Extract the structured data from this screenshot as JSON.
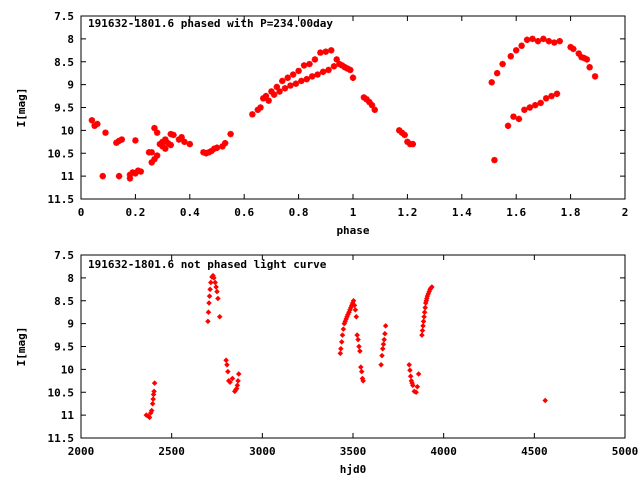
{
  "chart_data": [
    {
      "type": "scatter",
      "title": "191632-1801.6 phased with P=234.00day",
      "xlabel": "phase",
      "ylabel": "I[mag]",
      "xlim": [
        0,
        2
      ],
      "ylim": [
        11.5,
        7.5
      ],
      "y_inverted": true,
      "xticks": [
        "0",
        "0.2",
        "0.4",
        "0.6",
        "0.8",
        "1",
        "1.2",
        "1.4",
        "1.6",
        "1.8",
        "2"
      ],
      "xtick_values": [
        0,
        0.2,
        0.4,
        0.6,
        0.8,
        1.0,
        1.2,
        1.4,
        1.6,
        1.8,
        2.0
      ],
      "yticks": [
        "7.5",
        "8",
        "8.5",
        "9",
        "9.5",
        "10",
        "10.5",
        "11",
        "11.5"
      ],
      "ytick_values": [
        7.5,
        8,
        8.5,
        9,
        9.5,
        10,
        10.5,
        11,
        11.5
      ],
      "grid": false,
      "marker_color": "#ff0000",
      "marker": "star",
      "series": [
        {
          "points": [
            [
              0.04,
              9.78
            ],
            [
              0.05,
              9.9
            ],
            [
              0.06,
              9.86
            ],
            [
              0.08,
              11.0
            ],
            [
              0.09,
              10.05
            ],
            [
              0.13,
              10.27
            ],
            [
              0.14,
              10.23
            ],
            [
              0.14,
              11.0
            ],
            [
              0.15,
              10.2
            ],
            [
              0.18,
              11.05
            ],
            [
              0.18,
              10.97
            ],
            [
              0.19,
              10.92
            ],
            [
              0.2,
              10.22
            ],
            [
              0.2,
              10.94
            ],
            [
              0.21,
              10.88
            ],
            [
              0.22,
              10.9
            ],
            [
              0.25,
              10.48
            ],
            [
              0.26,
              10.7
            ],
            [
              0.26,
              10.48
            ],
            [
              0.27,
              10.63
            ],
            [
              0.27,
              9.95
            ],
            [
              0.28,
              10.55
            ],
            [
              0.28,
              10.05
            ],
            [
              0.29,
              10.3
            ],
            [
              0.3,
              10.35
            ],
            [
              0.3,
              10.25
            ],
            [
              0.31,
              10.4
            ],
            [
              0.31,
              10.2
            ],
            [
              0.32,
              10.28
            ],
            [
              0.33,
              10.32
            ],
            [
              0.33,
              10.08
            ],
            [
              0.34,
              10.1
            ],
            [
              0.36,
              10.2
            ],
            [
              0.37,
              10.15
            ],
            [
              0.38,
              10.25
            ],
            [
              0.4,
              10.3
            ],
            [
              0.45,
              10.48
            ],
            [
              0.46,
              10.5
            ],
            [
              0.47,
              10.48
            ],
            [
              0.48,
              10.45
            ],
            [
              0.49,
              10.4
            ],
            [
              0.5,
              10.38
            ],
            [
              0.52,
              10.35
            ],
            [
              0.53,
              10.28
            ],
            [
              0.55,
              10.08
            ],
            [
              0.63,
              9.65
            ],
            [
              0.65,
              9.55
            ],
            [
              0.66,
              9.5
            ],
            [
              0.67,
              9.3
            ],
            [
              0.68,
              9.25
            ],
            [
              0.69,
              9.35
            ],
            [
              0.7,
              9.15
            ],
            [
              0.71,
              9.22
            ],
            [
              0.72,
              9.05
            ],
            [
              0.73,
              9.15
            ],
            [
              0.74,
              8.92
            ],
            [
              0.75,
              9.08
            ],
            [
              0.76,
              8.85
            ],
            [
              0.77,
              9.02
            ],
            [
              0.78,
              8.78
            ],
            [
              0.79,
              8.98
            ],
            [
              0.8,
              8.7
            ],
            [
              0.81,
              8.92
            ],
            [
              0.82,
              8.58
            ],
            [
              0.83,
              8.88
            ],
            [
              0.84,
              8.55
            ],
            [
              0.85,
              8.82
            ],
            [
              0.86,
              8.45
            ],
            [
              0.87,
              8.78
            ],
            [
              0.88,
              8.3
            ],
            [
              0.89,
              8.72
            ],
            [
              0.9,
              8.28
            ],
            [
              0.91,
              8.68
            ],
            [
              0.92,
              8.25
            ],
            [
              0.93,
              8.6
            ],
            [
              0.94,
              8.45
            ],
            [
              0.95,
              8.55
            ],
            [
              0.96,
              8.58
            ],
            [
              0.97,
              8.62
            ],
            [
              0.98,
              8.65
            ],
            [
              0.99,
              8.68
            ],
            [
              1.0,
              8.85
            ],
            [
              1.04,
              9.28
            ],
            [
              1.05,
              9.32
            ],
            [
              1.06,
              9.38
            ],
            [
              1.07,
              9.45
            ],
            [
              1.08,
              9.55
            ],
            [
              1.17,
              10.0
            ],
            [
              1.18,
              10.05
            ],
            [
              1.19,
              10.1
            ],
            [
              1.2,
              10.25
            ],
            [
              1.21,
              10.3
            ],
            [
              1.22,
              10.3
            ],
            [
              1.51,
              8.95
            ],
            [
              1.52,
              10.65
            ],
            [
              1.53,
              8.75
            ],
            [
              1.55,
              8.55
            ],
            [
              1.57,
              9.9
            ],
            [
              1.58,
              8.38
            ],
            [
              1.59,
              9.7
            ],
            [
              1.6,
              8.25
            ],
            [
              1.61,
              9.75
            ],
            [
              1.62,
              8.15
            ],
            [
              1.63,
              9.55
            ],
            [
              1.64,
              8.02
            ],
            [
              1.65,
              9.5
            ],
            [
              1.66,
              8.0
            ],
            [
              1.67,
              9.45
            ],
            [
              1.68,
              8.05
            ],
            [
              1.69,
              9.4
            ],
            [
              1.7,
              8.0
            ],
            [
              1.71,
              9.3
            ],
            [
              1.72,
              8.05
            ],
            [
              1.73,
              9.25
            ],
            [
              1.74,
              8.08
            ],
            [
              1.75,
              9.2
            ],
            [
              1.76,
              8.05
            ],
            [
              1.8,
              8.18
            ],
            [
              1.81,
              8.22
            ],
            [
              1.83,
              8.32
            ],
            [
              1.84,
              8.4
            ],
            [
              1.85,
              8.42
            ],
            [
              1.86,
              8.45
            ],
            [
              1.87,
              8.62
            ],
            [
              1.89,
              8.82
            ]
          ]
        }
      ]
    },
    {
      "type": "scatter",
      "title": "191632-1801.6 not phased light curve",
      "xlabel": "hjd0",
      "ylabel": "I[mag]",
      "xlim": [
        2000,
        5000
      ],
      "ylim": [
        11.5,
        7.5
      ],
      "y_inverted": true,
      "xticks": [
        "2000",
        "2500",
        "3000",
        "3500",
        "4000",
        "4500",
        "5000"
      ],
      "xtick_values": [
        2000,
        2500,
        3000,
        3500,
        4000,
        4500,
        5000
      ],
      "yticks": [
        "7.5",
        "8",
        "8.5",
        "9",
        "9.5",
        "10",
        "10.5",
        "11",
        "11.5"
      ],
      "ytick_values": [
        7.5,
        8,
        8.5,
        9,
        9.5,
        10,
        10.5,
        11,
        11.5
      ],
      "grid": false,
      "marker_color": "#ff0000",
      "marker": "diamond",
      "series": [
        {
          "points": [
            [
              2360,
              11.0
            ],
            [
              2370,
              11.02
            ],
            [
              2378,
              11.05
            ],
            [
              2385,
              10.95
            ],
            [
              2390,
              10.9
            ],
            [
              2395,
              10.75
            ],
            [
              2398,
              10.65
            ],
            [
              2400,
              10.55
            ],
            [
              2403,
              10.48
            ],
            [
              2406,
              10.3
            ],
            [
              2700,
              8.95
            ],
            [
              2703,
              8.75
            ],
            [
              2706,
              8.55
            ],
            [
              2709,
              8.4
            ],
            [
              2712,
              8.25
            ],
            [
              2716,
              8.1
            ],
            [
              2722,
              7.98
            ],
            [
              2728,
              7.95
            ],
            [
              2733,
              8.0
            ],
            [
              2740,
              8.1
            ],
            [
              2745,
              8.2
            ],
            [
              2750,
              8.3
            ],
            [
              2755,
              8.45
            ],
            [
              2765,
              8.85
            ],
            [
              2800,
              9.8
            ],
            [
              2805,
              9.9
            ],
            [
              2810,
              10.05
            ],
            [
              2815,
              10.25
            ],
            [
              2822,
              10.28
            ],
            [
              2835,
              10.2
            ],
            [
              2848,
              10.48
            ],
            [
              2853,
              10.45
            ],
            [
              2858,
              10.42
            ],
            [
              2862,
              10.35
            ],
            [
              2866,
              10.25
            ],
            [
              2870,
              10.1
            ],
            [
              3430,
              9.65
            ],
            [
              3433,
              9.55
            ],
            [
              3438,
              9.4
            ],
            [
              3442,
              9.25
            ],
            [
              3447,
              9.12
            ],
            [
              3452,
              9.0
            ],
            [
              3457,
              8.95
            ],
            [
              3462,
              8.9
            ],
            [
              3467,
              8.85
            ],
            [
              3472,
              8.8
            ],
            [
              3478,
              8.75
            ],
            [
              3483,
              8.7
            ],
            [
              3488,
              8.65
            ],
            [
              3493,
              8.6
            ],
            [
              3498,
              8.55
            ],
            [
              3503,
              8.5
            ],
            [
              3508,
              8.6
            ],
            [
              3513,
              8.7
            ],
            [
              3518,
              8.85
            ],
            [
              3523,
              9.25
            ],
            [
              3528,
              9.35
            ],
            [
              3533,
              9.5
            ],
            [
              3538,
              9.6
            ],
            [
              3543,
              9.95
            ],
            [
              3548,
              10.05
            ],
            [
              3552,
              10.2
            ],
            [
              3556,
              10.25
            ],
            [
              3655,
              9.9
            ],
            [
              3660,
              9.7
            ],
            [
              3664,
              9.55
            ],
            [
              3668,
              9.45
            ],
            [
              3672,
              9.35
            ],
            [
              3676,
              9.22
            ],
            [
              3680,
              9.05
            ],
            [
              3810,
              9.9
            ],
            [
              3814,
              10.02
            ],
            [
              3818,
              10.15
            ],
            [
              3822,
              10.25
            ],
            [
              3826,
              10.3
            ],
            [
              3830,
              10.35
            ],
            [
              3838,
              10.48
            ],
            [
              3848,
              10.5
            ],
            [
              3855,
              10.38
            ],
            [
              3862,
              10.1
            ],
            [
              3880,
              9.25
            ],
            [
              3883,
              9.15
            ],
            [
              3886,
              9.05
            ],
            [
              3889,
              8.95
            ],
            [
              3892,
              8.85
            ],
            [
              3895,
              8.75
            ],
            [
              3898,
              8.65
            ],
            [
              3901,
              8.55
            ],
            [
              3904,
              8.5
            ],
            [
              3907,
              8.45
            ],
            [
              3910,
              8.4
            ],
            [
              3915,
              8.35
            ],
            [
              3920,
              8.3
            ],
            [
              3925,
              8.25
            ],
            [
              3930,
              8.22
            ],
            [
              3935,
              8.2
            ],
            [
              4560,
              10.68
            ]
          ]
        }
      ]
    }
  ]
}
